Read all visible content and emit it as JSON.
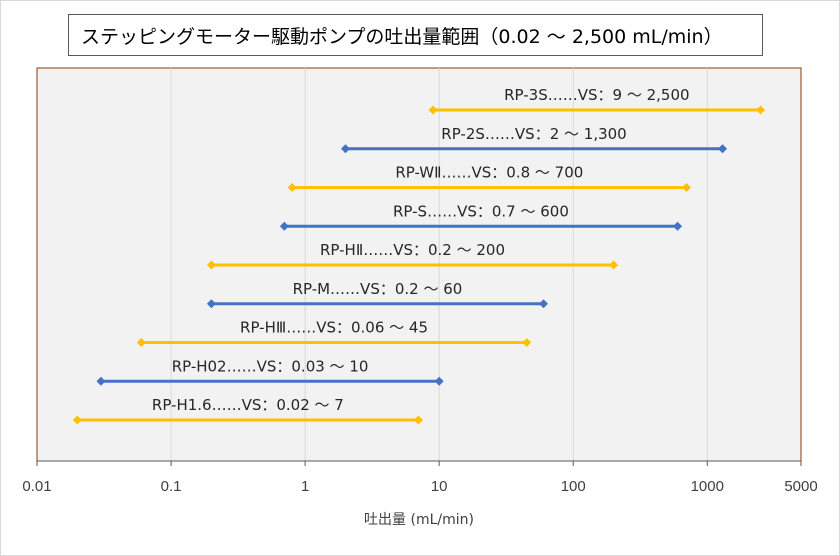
{
  "chart_data": {
    "type": "range-bar",
    "title": "ステッピングモーター駆動ポンプの吐出量範囲（0.02 ～ 2,500 mL/min）",
    "xlabel": "吐出量 (mL/min)",
    "ylabel": "",
    "x_scale": "log",
    "xlim": [
      0.01,
      5000
    ],
    "x_ticks": [
      0.01,
      0.1,
      1,
      10,
      100,
      1000,
      5000
    ],
    "x_tick_labels": [
      "0.01",
      "0.1",
      "1",
      "10",
      "100",
      "1000",
      "5000"
    ],
    "grid": "vertical",
    "plot_background": "#f2f2f2",
    "plot_border_color": "#843c0c",
    "colors": {
      "orange": "#ffc000",
      "blue": "#4472c4"
    },
    "series": [
      {
        "label": "RP-3S……VS：9 ～ 2,500",
        "min": 9,
        "max": 2500,
        "color": "#ffc000"
      },
      {
        "label": "RP-2S……VS：2 ～ 1,300",
        "min": 2,
        "max": 1300,
        "color": "#4472c4"
      },
      {
        "label": "RP-WⅡ……VS：0.8 ～ 700",
        "min": 0.8,
        "max": 700,
        "color": "#ffc000"
      },
      {
        "label": "RP-S……VS：0.7 ～ 600",
        "min": 0.7,
        "max": 600,
        "color": "#4472c4"
      },
      {
        "label": "RP-HⅡ……VS：0.2 ～ 200",
        "min": 0.2,
        "max": 200,
        "color": "#ffc000"
      },
      {
        "label": "RP-M……VS：0.2 ～ 60",
        "min": 0.2,
        "max": 60,
        "color": "#4472c4"
      },
      {
        "label": "RP-HⅢ……VS：0.06 ～ 45",
        "min": 0.06,
        "max": 45,
        "color": "#ffc000"
      },
      {
        "label": "RP-H02……VS：0.03 ～ 10",
        "min": 0.03,
        "max": 10,
        "color": "#4472c4"
      },
      {
        "label": "RP-H1.6……VS：0.02 ～ 7",
        "min": 0.02,
        "max": 7,
        "color": "#ffc000"
      }
    ]
  }
}
